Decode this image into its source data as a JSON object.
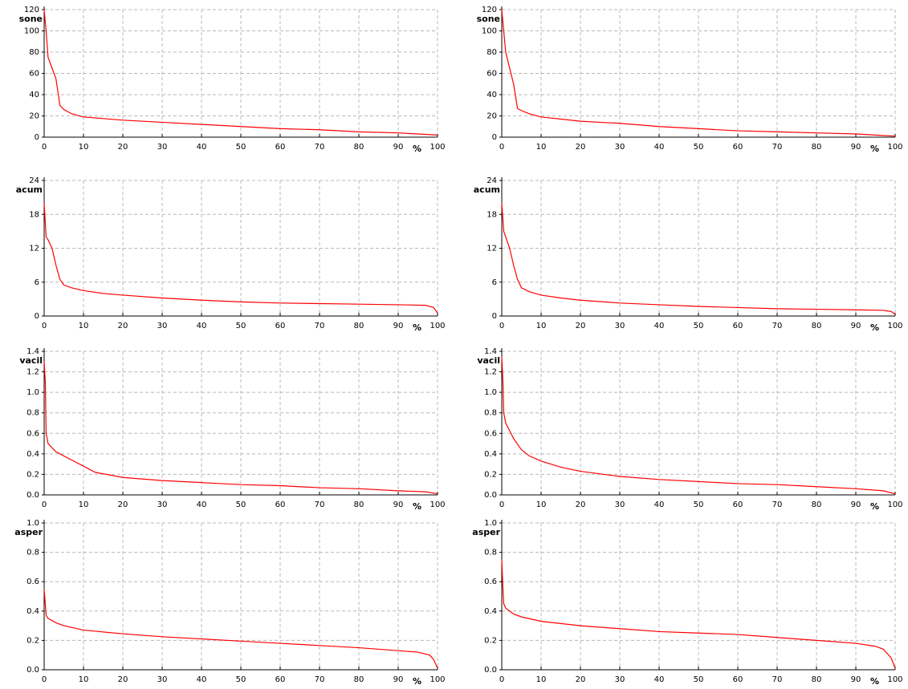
{
  "chart_data": [
    {
      "type": "line",
      "ylabel": "sone",
      "xlabel": "%",
      "color": "#ff0000",
      "grid": true,
      "x": [
        0,
        0.5,
        1,
        2,
        3,
        4,
        5,
        7,
        10,
        20,
        30,
        40,
        50,
        60,
        70,
        80,
        90,
        95,
        100
      ],
      "values": [
        120,
        100,
        75,
        65,
        55,
        30,
        26,
        22,
        19,
        16,
        14,
        12,
        10,
        8,
        7,
        5,
        4,
        3,
        2
      ],
      "xlim": [
        0,
        100
      ],
      "xticks": [
        0,
        10,
        20,
        30,
        40,
        50,
        60,
        70,
        80,
        90,
        100
      ],
      "ylim": [
        0,
        120
      ],
      "yticks": [
        0,
        20,
        40,
        60,
        80,
        100,
        120
      ]
    },
    {
      "type": "line",
      "ylabel": "sone",
      "xlabel": "%",
      "color": "#ff0000",
      "grid": true,
      "x": [
        0,
        0.5,
        1,
        2,
        3,
        4,
        5,
        7,
        10,
        20,
        30,
        40,
        50,
        60,
        70,
        80,
        90,
        95,
        100
      ],
      "values": [
        120,
        100,
        80,
        65,
        50,
        27,
        25,
        22,
        19,
        15,
        13,
        10,
        8,
        6,
        5,
        4,
        3,
        2,
        1
      ],
      "xlim": [
        0,
        100
      ],
      "xticks": [
        0,
        10,
        20,
        30,
        40,
        50,
        60,
        70,
        80,
        90,
        100
      ],
      "ylim": [
        0,
        120
      ],
      "yticks": [
        0,
        20,
        40,
        60,
        80,
        100,
        120
      ]
    },
    {
      "type": "line",
      "ylabel": "acum",
      "xlabel": "%",
      "color": "#ff0000",
      "grid": true,
      "x": [
        0,
        0.5,
        1,
        2,
        3,
        4,
        5,
        7,
        10,
        15,
        20,
        30,
        40,
        50,
        60,
        70,
        80,
        90,
        97,
        99,
        100
      ],
      "values": [
        20,
        14,
        13.5,
        12,
        9,
        6.5,
        5.5,
        5,
        4.5,
        4,
        3.7,
        3.2,
        2.8,
        2.5,
        2.3,
        2.2,
        2.1,
        2,
        1.9,
        1.5,
        0.5
      ],
      "xlim": [
        0,
        100
      ],
      "xticks": [
        0,
        10,
        20,
        30,
        40,
        50,
        60,
        70,
        80,
        90,
        100
      ],
      "ylim": [
        0,
        24
      ],
      "yticks": [
        0,
        6,
        12,
        18,
        24
      ]
    },
    {
      "type": "line",
      "ylabel": "acum",
      "xlabel": "%",
      "color": "#ff0000",
      "grid": true,
      "x": [
        0,
        0.5,
        1,
        2,
        3,
        4,
        5,
        7,
        10,
        15,
        20,
        30,
        40,
        50,
        60,
        70,
        80,
        90,
        97,
        99,
        100
      ],
      "values": [
        20,
        15,
        14,
        12,
        9,
        6.5,
        5,
        4.3,
        3.7,
        3.2,
        2.8,
        2.3,
        2,
        1.7,
        1.5,
        1.3,
        1.2,
        1.1,
        1,
        0.8,
        0.3
      ],
      "xlim": [
        0,
        100
      ],
      "xticks": [
        0,
        10,
        20,
        30,
        40,
        50,
        60,
        70,
        80,
        90,
        100
      ],
      "ylim": [
        0,
        24
      ],
      "yticks": [
        0,
        6,
        12,
        18,
        24
      ]
    },
    {
      "type": "line",
      "ylabel": "vacil",
      "xlabel": "%",
      "color": "#ff0000",
      "grid": true,
      "x": [
        0,
        0.3,
        0.5,
        1,
        3,
        5,
        7,
        10,
        13,
        20,
        30,
        40,
        50,
        60,
        70,
        80,
        90,
        97,
        100
      ],
      "values": [
        1.3,
        1.1,
        0.6,
        0.5,
        0.42,
        0.38,
        0.34,
        0.28,
        0.22,
        0.17,
        0.14,
        0.12,
        0.1,
        0.09,
        0.07,
        0.06,
        0.04,
        0.03,
        0.01
      ],
      "xlim": [
        0,
        100
      ],
      "xticks": [
        0,
        10,
        20,
        30,
        40,
        50,
        60,
        70,
        80,
        90,
        100
      ],
      "ylim": [
        0,
        1.4
      ],
      "yticks": [
        {
          "value": 0,
          "label": "0.0"
        },
        0.2,
        0.4,
        0.6,
        0.8,
        {
          "value": 1,
          "label": "1.0"
        },
        1.2,
        1.4
      ]
    },
    {
      "type": "line",
      "ylabel": "vacil",
      "xlabel": "%",
      "color": "#ff0000",
      "grid": true,
      "x": [
        0,
        0.3,
        0.5,
        1,
        3,
        5,
        7,
        10,
        15,
        20,
        30,
        40,
        50,
        60,
        70,
        80,
        90,
        97,
        100
      ],
      "values": [
        1.35,
        1.1,
        0.8,
        0.7,
        0.55,
        0.44,
        0.38,
        0.33,
        0.27,
        0.23,
        0.18,
        0.15,
        0.13,
        0.11,
        0.1,
        0.08,
        0.06,
        0.04,
        0.01
      ],
      "xlim": [
        0,
        100
      ],
      "xticks": [
        0,
        10,
        20,
        30,
        40,
        50,
        60,
        70,
        80,
        90,
        100
      ],
      "ylim": [
        0,
        1.4
      ],
      "yticks": [
        {
          "value": 0,
          "label": "0.0"
        },
        0.2,
        0.4,
        0.6,
        0.8,
        {
          "value": 1,
          "label": "1.0"
        },
        1.2,
        1.4
      ]
    },
    {
      "type": "line",
      "ylabel": "asper",
      "xlabel": "%",
      "color": "#ff0000",
      "grid": true,
      "x": [
        0,
        0.5,
        1,
        3,
        5,
        10,
        20,
        30,
        40,
        50,
        60,
        70,
        80,
        90,
        95,
        98,
        99,
        100
      ],
      "values": [
        0.55,
        0.37,
        0.35,
        0.32,
        0.3,
        0.27,
        0.245,
        0.225,
        0.21,
        0.195,
        0.18,
        0.165,
        0.15,
        0.13,
        0.12,
        0.1,
        0.07,
        0.01
      ],
      "xlim": [
        0,
        100
      ],
      "xticks": [
        0,
        10,
        20,
        30,
        40,
        50,
        60,
        70,
        80,
        90,
        100
      ],
      "ylim": [
        0,
        1
      ],
      "yticks": [
        {
          "value": 0,
          "label": "0.0"
        },
        0.2,
        0.4,
        0.6,
        0.8,
        {
          "value": 1,
          "label": "1.0"
        }
      ]
    },
    {
      "type": "line",
      "ylabel": "asper",
      "xlabel": "%",
      "color": "#ff0000",
      "grid": true,
      "x": [
        0,
        0.3,
        0.5,
        1,
        3,
        5,
        10,
        20,
        30,
        40,
        50,
        60,
        70,
        80,
        90,
        95,
        97,
        99,
        100
      ],
      "values": [
        0.75,
        0.55,
        0.45,
        0.42,
        0.38,
        0.36,
        0.33,
        0.3,
        0.28,
        0.26,
        0.25,
        0.24,
        0.22,
        0.2,
        0.18,
        0.16,
        0.14,
        0.08,
        0.01
      ],
      "xlim": [
        0,
        100
      ],
      "xticks": [
        0,
        10,
        20,
        30,
        40,
        50,
        60,
        70,
        80,
        90,
        100
      ],
      "ylim": [
        0,
        1
      ],
      "yticks": [
        {
          "value": 0,
          "label": "0.0"
        },
        0.2,
        0.4,
        0.6,
        0.8,
        {
          "value": 1,
          "label": "1.0"
        }
      ]
    }
  ]
}
